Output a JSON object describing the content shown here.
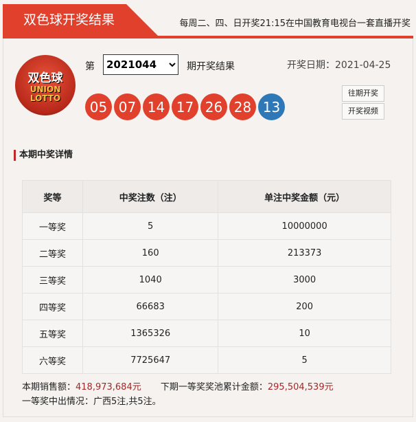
{
  "header": {
    "title": "双色球开奖结果",
    "notice": "每周二、四、日开奖21:15在中国教育电视台一套直播开奖"
  },
  "logo": {
    "text_cn": "双色球",
    "text_en1": "UNION",
    "text_en2": "LOTTO"
  },
  "issue": {
    "prefix": "第",
    "selected": "2021044",
    "suffix": "期开奖结果",
    "date_label": "开奖日期：",
    "date": "2021-04-25"
  },
  "balls": {
    "red": [
      "05",
      "07",
      "14",
      "17",
      "26",
      "28"
    ],
    "blue": "13",
    "red_color": "#e0402c",
    "blue_color": "#2e78b8"
  },
  "buttons": {
    "history": "往期开奖",
    "video": "开奖视频"
  },
  "section_title": "本期中奖详情",
  "table": {
    "headers": [
      "奖等",
      "中奖注数（注）",
      "单注中奖金额（元）"
    ],
    "rows": [
      [
        "一等奖",
        "5",
        "10000000"
      ],
      [
        "二等奖",
        "160",
        "213373"
      ],
      [
        "三等奖",
        "1040",
        "3000"
      ],
      [
        "四等奖",
        "66683",
        "200"
      ],
      [
        "五等奖",
        "1365326",
        "10"
      ],
      [
        "六等奖",
        "7725647",
        "5"
      ]
    ]
  },
  "footer": {
    "sales_label": "本期销售额：",
    "sales": "418,973,684元",
    "pool_label": "下期一等奖奖池累计金额：",
    "pool": "295,504,539元",
    "winners": "一等奖中出情况：广西5注,共5注。"
  }
}
